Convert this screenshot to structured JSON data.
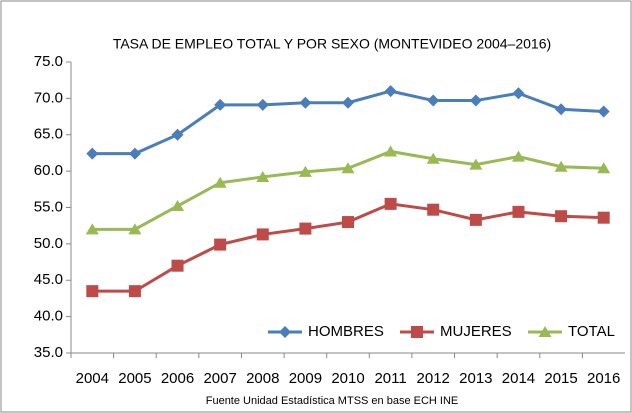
{
  "chart_data": {
    "type": "line",
    "title": "TASA DE EMPLEO TOTAL Y POR SEXO (MONTEVIDEO 2004–2016)",
    "source": "Fuente Unidad Estadística MTSS en base ECH INE",
    "categories": [
      "2004",
      "2005",
      "2006",
      "2007",
      "2008",
      "2009",
      "2010",
      "2011",
      "2012",
      "2013",
      "2014",
      "2015",
      "2016"
    ],
    "series": [
      {
        "name": "HOMBRES",
        "color": "#4a7ebb",
        "marker": "diamond",
        "values": [
          62.4,
          62.4,
          65.0,
          69.1,
          69.1,
          69.4,
          69.4,
          71.0,
          69.7,
          69.7,
          70.7,
          68.5,
          68.2
        ]
      },
      {
        "name": "MUJERES",
        "color": "#be4b48",
        "marker": "square",
        "values": [
          43.5,
          43.5,
          47.0,
          49.9,
          51.3,
          52.1,
          53.0,
          55.5,
          54.7,
          53.3,
          54.4,
          53.8,
          53.6
        ]
      },
      {
        "name": "TOTAL",
        "color": "#98b954",
        "marker": "triangle",
        "values": [
          52.0,
          52.0,
          55.2,
          58.4,
          59.2,
          59.9,
          60.4,
          62.7,
          61.7,
          60.9,
          62.0,
          60.6,
          60.4
        ]
      }
    ],
    "ylim": [
      35,
      75
    ],
    "yticks": [
      {
        "value": 35,
        "label": "35.0"
      },
      {
        "value": 40,
        "label": "40.0"
      },
      {
        "value": 45,
        "label": "45.0"
      },
      {
        "value": 50,
        "label": "50.0"
      },
      {
        "value": 55,
        "label": "55.0"
      },
      {
        "value": 60,
        "label": "60.0"
      },
      {
        "value": 65,
        "label": "65.0"
      },
      {
        "value": 70,
        "label": "70.0"
      },
      {
        "value": 75,
        "label": "75.0"
      }
    ],
    "grid": false,
    "legend": "bottom-right"
  }
}
